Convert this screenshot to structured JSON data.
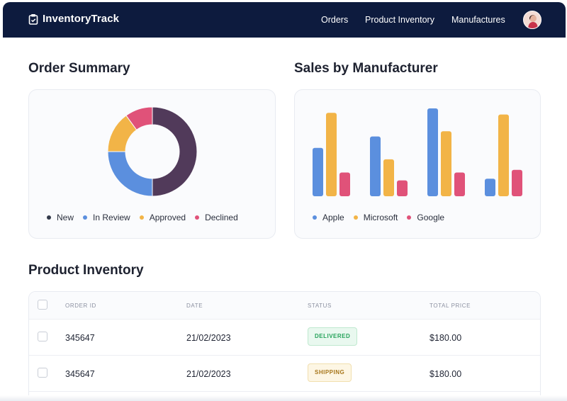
{
  "header": {
    "logo_text": "InventoryTrack",
    "nav": [
      "Orders",
      "Product Inventory",
      "Manufactures"
    ],
    "background": "#0d1b3e"
  },
  "order_summary": {
    "title": "Order Summary",
    "legend": [
      "New",
      "In Review",
      "Approved",
      "Declined"
    ]
  },
  "sales_by_manufacturer": {
    "title": "Sales by Manufacturer",
    "legend": [
      "Apple",
      "Microsoft",
      "Google"
    ]
  },
  "product_inventory": {
    "title": "Product Inventory",
    "columns": [
      "ORDER ID",
      "DATE",
      "STATUS",
      "TOTAL PRICE"
    ],
    "rows": [
      {
        "order_id": "345647",
        "date": "21/02/2023",
        "status": "DELIVERED",
        "total_price": "$180.00"
      },
      {
        "order_id": "345647",
        "date": "21/02/2023",
        "status": "SHIPPING",
        "total_price": "$180.00"
      }
    ]
  },
  "chart_data": [
    {
      "type": "pie",
      "title": "Order Summary",
      "categories": [
        "New",
        "In Review",
        "Approved",
        "Declined"
      ],
      "values": [
        50,
        25,
        15,
        10
      ],
      "colors": [
        "#513a5a",
        "#5b8fde",
        "#f2b447",
        "#e05279"
      ],
      "donut": true,
      "legend": "bottom"
    },
    {
      "type": "bar",
      "title": "Sales by Manufacturer",
      "categories": [
        "",
        "",
        "",
        ""
      ],
      "series": [
        {
          "name": "Apple",
          "values": [
            55,
            68,
            100,
            20
          ],
          "color": "#5b8fde"
        },
        {
          "name": "Microsoft",
          "values": [
            95,
            42,
            74,
            93
          ],
          "color": "#f2b447"
        },
        {
          "name": "Google",
          "values": [
            27,
            18,
            27,
            30
          ],
          "color": "#e05279"
        }
      ],
      "ylim": [
        0,
        100
      ],
      "grid": false,
      "legend": "bottom"
    }
  ]
}
